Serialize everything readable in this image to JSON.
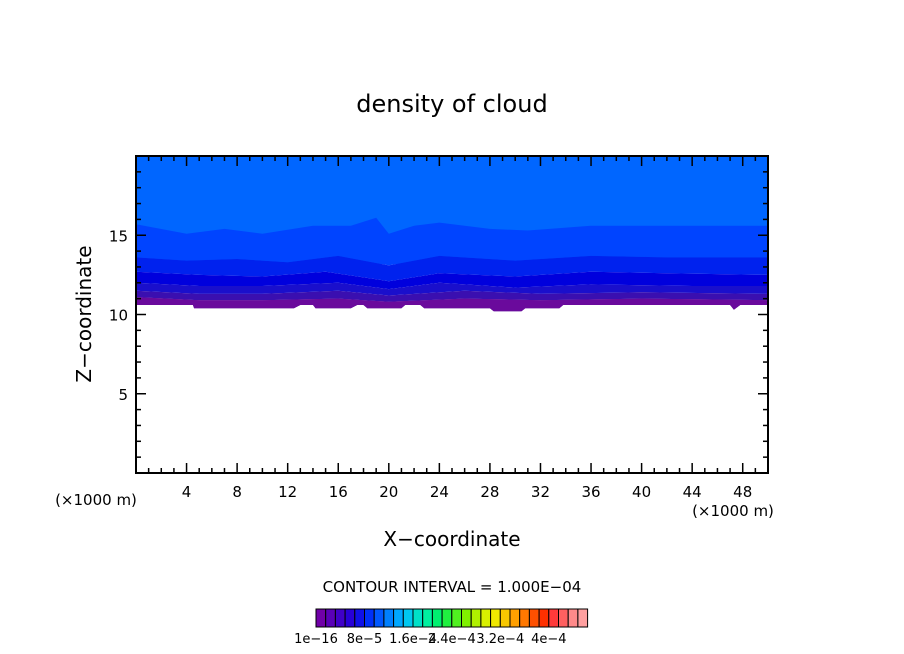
{
  "chart_data": {
    "type": "heatmap",
    "title": "density of cloud",
    "xlabel": "X−coordinate",
    "ylabel": "Z−coordinate",
    "x_unit_label_left": "(×1000 m)",
    "x_unit_label_right": "(×1000 m)",
    "xlim": [
      0,
      50
    ],
    "ylim": [
      0,
      20
    ],
    "x_ticks": [
      4,
      8,
      12,
      16,
      20,
      24,
      28,
      32,
      36,
      40,
      44,
      48
    ],
    "y_ticks": [
      5,
      10,
      15
    ],
    "background_color": "#0066ff",
    "bands": [
      {
        "color": "#0044ff",
        "profile": [
          [
            0,
            15.7
          ],
          [
            4,
            15.1
          ],
          [
            7,
            15.4
          ],
          [
            10,
            15.1
          ],
          [
            14,
            15.6
          ],
          [
            17,
            15.6
          ],
          [
            19,
            16.1
          ],
          [
            20,
            15.1
          ],
          [
            22,
            15.6
          ],
          [
            24,
            15.8
          ],
          [
            26,
            15.6
          ],
          [
            28,
            15.4
          ],
          [
            31,
            15.3
          ],
          [
            36,
            15.6
          ],
          [
            42,
            15.6
          ],
          [
            50,
            15.6
          ]
        ]
      },
      {
        "color": "#0022ee",
        "profile": [
          [
            0,
            13.6
          ],
          [
            4,
            13.4
          ],
          [
            8,
            13.5
          ],
          [
            12,
            13.3
          ],
          [
            16,
            13.7
          ],
          [
            20,
            13.1
          ],
          [
            24,
            13.7
          ],
          [
            30,
            13.4
          ],
          [
            36,
            13.7
          ],
          [
            42,
            13.6
          ],
          [
            50,
            13.6
          ]
        ]
      },
      {
        "color": "#0000dd",
        "profile": [
          [
            0,
            12.7
          ],
          [
            5,
            12.5
          ],
          [
            10,
            12.4
          ],
          [
            15,
            12.7
          ],
          [
            20,
            12.1
          ],
          [
            24,
            12.6
          ],
          [
            30,
            12.4
          ],
          [
            36,
            12.7
          ],
          [
            42,
            12.6
          ],
          [
            50,
            12.5
          ]
        ]
      },
      {
        "color": "#1a0fcc",
        "profile": [
          [
            0,
            12.0
          ],
          [
            5,
            11.8
          ],
          [
            10,
            11.8
          ],
          [
            16,
            12.0
          ],
          [
            20,
            11.6
          ],
          [
            24,
            12.0
          ],
          [
            30,
            11.7
          ],
          [
            36,
            11.9
          ],
          [
            44,
            11.8
          ],
          [
            50,
            11.8
          ]
        ]
      },
      {
        "color": "#3a0fb0",
        "profile": [
          [
            0,
            11.5
          ],
          [
            5,
            11.3
          ],
          [
            10,
            11.3
          ],
          [
            16,
            11.5
          ],
          [
            20,
            11.2
          ],
          [
            26,
            11.5
          ],
          [
            32,
            11.3
          ],
          [
            40,
            11.4
          ],
          [
            50,
            11.3
          ]
        ]
      },
      {
        "color": "#55129e",
        "profile": [
          [
            0,
            11.1
          ],
          [
            5,
            10.9
          ],
          [
            10,
            10.9
          ],
          [
            16,
            11.0
          ],
          [
            20,
            10.8
          ],
          [
            26,
            11.0
          ],
          [
            32,
            10.9
          ],
          [
            40,
            11.0
          ],
          [
            50,
            10.9
          ]
        ]
      },
      {
        "color": "#6a0a9c",
        "profile": [
          [
            0,
            10.6
          ],
          [
            4.5,
            10.6
          ],
          [
            4.6,
            10.4
          ],
          [
            12.5,
            10.4
          ],
          [
            13,
            10.6
          ],
          [
            14,
            10.6
          ],
          [
            14.2,
            10.4
          ],
          [
            17,
            10.4
          ],
          [
            17.5,
            10.6
          ],
          [
            18,
            10.6
          ],
          [
            18.3,
            10.4
          ],
          [
            21,
            10.4
          ],
          [
            21.3,
            10.6
          ],
          [
            22.5,
            10.6
          ],
          [
            22.8,
            10.4
          ],
          [
            28,
            10.4
          ],
          [
            28.3,
            10.2
          ],
          [
            30.5,
            10.2
          ],
          [
            30.8,
            10.4
          ],
          [
            33.5,
            10.4
          ],
          [
            33.8,
            10.6
          ],
          [
            47,
            10.6
          ],
          [
            47.3,
            10.3
          ],
          [
            47.8,
            10.6
          ],
          [
            50,
            10.6
          ]
        ]
      }
    ],
    "contour_interval_label": "CONTOUR INTERVAL = 1.000E−04",
    "colorbar": {
      "colors": [
        "#7000a8",
        "#5a00b8",
        "#4000c8",
        "#2800d8",
        "#1010e8",
        "#0030f8",
        "#0058ff",
        "#0080ff",
        "#00a8ff",
        "#00c8f0",
        "#00e0c8",
        "#00f0a0",
        "#00f070",
        "#20f040",
        "#50f020",
        "#80f000",
        "#b0f000",
        "#d8f000",
        "#f0e800",
        "#f8c800",
        "#ffa000",
        "#ff7800",
        "#ff5000",
        "#ff3000",
        "#ff3a3a",
        "#ff6060",
        "#ff8a8a",
        "#ffa0a0"
      ],
      "labels": [
        {
          "text": "1e−16",
          "index": 0
        },
        {
          "text": "8e−5",
          "index": 5
        },
        {
          "text": "1.6e−4",
          "index": 10
        },
        {
          "text": "2.4e−4",
          "index": 14
        },
        {
          "text": "3.2e−4",
          "index": 19
        },
        {
          "text": "4e−4",
          "index": 24
        }
      ]
    }
  }
}
